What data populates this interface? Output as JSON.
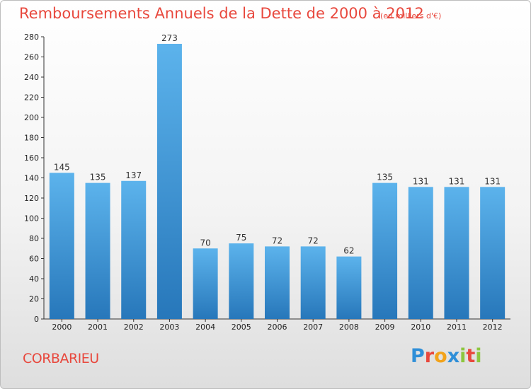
{
  "header": {
    "title": "Remboursements Annuels de la Dette de 2000 à 2012",
    "unit": "(en milliers d'€)"
  },
  "footer": {
    "commune": "CORBARIEU",
    "logo_letters": [
      {
        "char": "P",
        "color": "#2f8fd8"
      },
      {
        "char": "r",
        "color": "#e8483d"
      },
      {
        "char": "o",
        "color": "#f2a31b"
      },
      {
        "char": "x",
        "color": "#2f8fd8"
      },
      {
        "char": "i",
        "color": "#8dc63f"
      },
      {
        "char": "t",
        "color": "#e8483d"
      },
      {
        "char": "i",
        "color": "#8dc63f"
      }
    ]
  },
  "colors": {
    "bar_top": "#5cb3ec",
    "bar_bottom": "#2777ba",
    "title": "#e8483d"
  },
  "chart_data": {
    "type": "bar",
    "title": "Remboursements Annuels de la Dette de 2000 à 2012",
    "subtitle": "(en milliers d'€)",
    "xlabel": "",
    "ylabel": "",
    "categories": [
      "2000",
      "2001",
      "2002",
      "2003",
      "2004",
      "2005",
      "2006",
      "2007",
      "2008",
      "2009",
      "2010",
      "2011",
      "2012"
    ],
    "values": [
      145,
      135,
      137,
      273,
      70,
      75,
      72,
      72,
      62,
      135,
      131,
      131,
      131
    ],
    "ylim": [
      0,
      280
    ],
    "yticks": [
      0,
      20,
      40,
      60,
      80,
      100,
      120,
      140,
      160,
      180,
      200,
      220,
      240,
      260,
      280
    ],
    "grid": false,
    "legend": "none"
  }
}
